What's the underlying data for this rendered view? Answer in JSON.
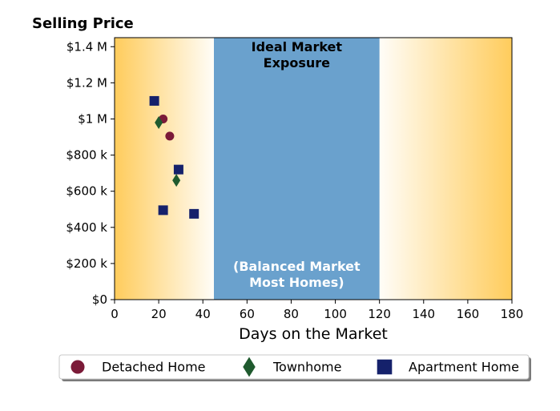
{
  "chart_data": {
    "type": "scatter",
    "title": "",
    "ylabel": "Selling Price",
    "xlabel": "Days on the Market",
    "xlim": [
      0,
      180
    ],
    "ylim": [
      0,
      1450000
    ],
    "x_ticks": [
      0,
      20,
      40,
      60,
      80,
      100,
      120,
      140,
      160,
      180
    ],
    "x_tick_labels": [
      "0",
      "20",
      "40",
      "60",
      "80",
      "100",
      "120",
      "140",
      "160",
      "180"
    ],
    "y_ticks": [
      0,
      200000,
      400000,
      600000,
      800000,
      1000000,
      1200000,
      1400000
    ],
    "y_tick_labels": [
      "$0",
      "$200 k",
      "$400 k",
      "$600 k",
      "$800 k",
      "$1 M",
      "$1.2 M",
      "$1.4 M"
    ],
    "grid": false,
    "bands": [
      {
        "from": 45,
        "to": 120,
        "color": "#6aa1cd",
        "label_top": [
          "Ideal Market",
          "Exposure"
        ],
        "label_bottom": [
          "(Balanced Market",
          "Most Homes)"
        ]
      }
    ],
    "background_gradient": {
      "edge_color": "#ffcc5c",
      "center_color": "#fffdf8"
    },
    "legend_position": "bottom",
    "series": [
      {
        "name": "Detached Home",
        "marker": "circle",
        "color": "#7b1a38",
        "points": [
          {
            "x": 22,
            "y": 1000000
          },
          {
            "x": 25,
            "y": 905000
          }
        ]
      },
      {
        "name": "Townhome",
        "marker": "diamond",
        "color": "#1f5a2e",
        "points": [
          {
            "x": 20,
            "y": 980000
          },
          {
            "x": 28,
            "y": 660000
          }
        ]
      },
      {
        "name": "Apartment Home",
        "marker": "square",
        "color": "#15216b",
        "points": [
          {
            "x": 18,
            "y": 1100000
          },
          {
            "x": 29,
            "y": 720000
          },
          {
            "x": 22,
            "y": 495000
          },
          {
            "x": 36,
            "y": 475000
          }
        ]
      }
    ]
  }
}
